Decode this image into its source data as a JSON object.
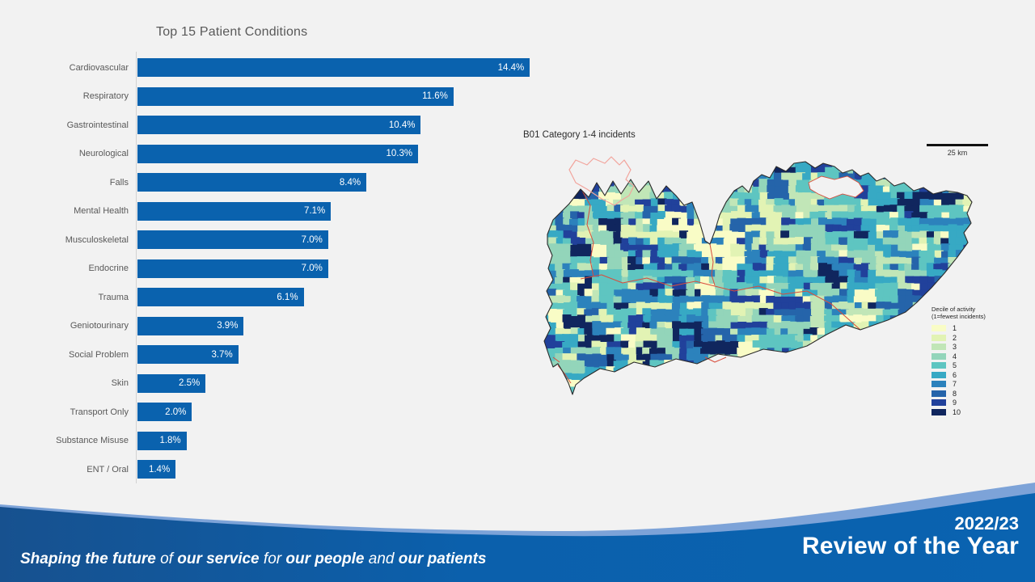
{
  "chart_data": {
    "type": "bar",
    "orientation": "horizontal",
    "title": "Top 15 Patient Conditions",
    "categories": [
      "Cardiovascular",
      "Respiratory",
      "Gastrointestinal",
      "Neurological",
      "Falls",
      "Mental Health",
      "Musculoskeletal",
      "Endocrine",
      "Trauma",
      "Geniotourinary",
      "Social Problem",
      "Skin",
      "Transport Only",
      "Substance Misuse",
      "ENT / Oral"
    ],
    "values": [
      14.4,
      11.6,
      10.4,
      10.3,
      8.4,
      7.1,
      7.0,
      7.0,
      6.1,
      3.9,
      3.7,
      2.5,
      2.0,
      1.8,
      1.4
    ],
    "value_labels": [
      "14.4%",
      "11.6%",
      "10.4%",
      "10.3%",
      "8.4%",
      "7.1%",
      "7.0%",
      "7.0%",
      "6.1%",
      "3.9%",
      "3.7%",
      "2.5%",
      "2.0%",
      "1.8%",
      "1.4%"
    ],
    "unit": "%",
    "xlim": [
      0,
      14.4
    ],
    "bar_color": "#0a62ae",
    "label_color": "#595959",
    "grid": false,
    "legend_position": "none"
  },
  "map": {
    "title": "B01 Category 1-4 incidents",
    "scale_label": "25 km",
    "legend_title": "Decile of activity\n(1=fewest incidents)",
    "deciles": [
      {
        "label": "1",
        "color": "#f9fcc6"
      },
      {
        "label": "2",
        "color": "#e2f3b4"
      },
      {
        "label": "3",
        "color": "#c1e6b7"
      },
      {
        "label": "4",
        "color": "#93d5ba"
      },
      {
        "label": "5",
        "color": "#5ec5c1"
      },
      {
        "label": "6",
        "color": "#37a9c4"
      },
      {
        "label": "7",
        "color": "#2c82bc"
      },
      {
        "label": "8",
        "color": "#2564aa"
      },
      {
        "label": "9",
        "color": "#21419b"
      },
      {
        "label": "10",
        "color": "#10265e"
      }
    ]
  },
  "footer": {
    "tagline_segments": [
      {
        "text": "Shaping the future",
        "bold": true
      },
      {
        "text": " of ",
        "bold": false
      },
      {
        "text": "our service",
        "bold": true
      },
      {
        "text": " for ",
        "bold": false
      },
      {
        "text": "our people",
        "bold": true
      },
      {
        "text": " and ",
        "bold": false
      },
      {
        "text": "our patients",
        "bold": true
      }
    ],
    "year": "2022/23",
    "review_title": "Review of the Year"
  },
  "colors": {
    "background": "#f2f2f2",
    "bar_blue": "#0a62ae",
    "footer_blue_left": "#17518f",
    "footer_blue_right": "#0a63b0",
    "wave_stripe": "#7da3d8",
    "coastline": "#2a2a2a",
    "county_line": "#d94c3c",
    "london_outline": "#f2a49c"
  }
}
